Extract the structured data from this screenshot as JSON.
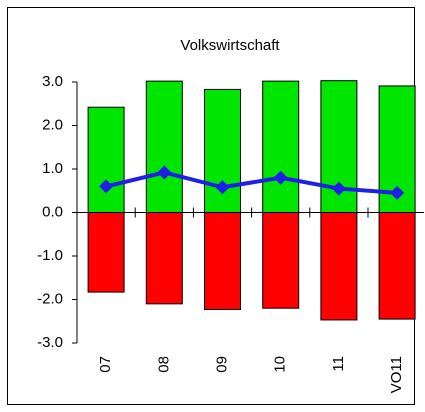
{
  "chart_data": {
    "type": "bar",
    "title": "Volkswirtschaft",
    "categories": [
      "07",
      "08",
      "09",
      "10",
      "11",
      "VO11"
    ],
    "series": [
      {
        "type": "bar",
        "color": "#00e600",
        "values": [
          2.42,
          3.02,
          2.83,
          3.02,
          3.03,
          2.91
        ]
      },
      {
        "type": "bar",
        "color": "#ff0000",
        "values": [
          -1.83,
          -2.1,
          -2.23,
          -2.2,
          -2.47,
          -2.45
        ]
      },
      {
        "type": "line",
        "color": "#1f1fe6",
        "values": [
          0.6,
          0.92,
          0.58,
          0.8,
          0.55,
          0.45
        ]
      }
    ],
    "ylim": [
      -3,
      3
    ],
    "yticks": [
      {
        "value": 3,
        "label": "3.0"
      },
      {
        "value": 2,
        "label": "2.0"
      },
      {
        "value": 1,
        "label": "1.0"
      },
      {
        "value": 0,
        "label": "0.0"
      },
      {
        "value": -1,
        "label": "-1.0"
      },
      {
        "value": -2,
        "label": "-2.0"
      },
      {
        "value": -3,
        "label": "-3.0"
      }
    ]
  }
}
